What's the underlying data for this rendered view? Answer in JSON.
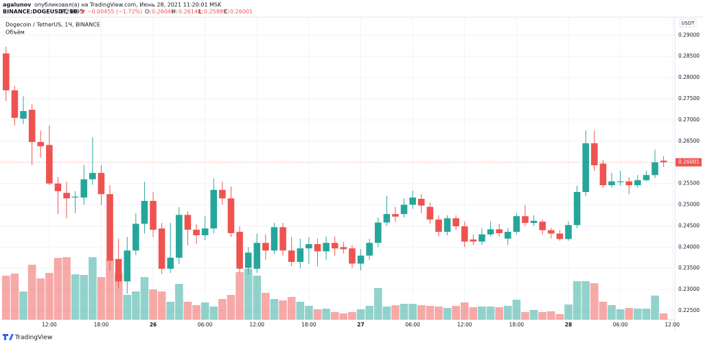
{
  "header": {
    "author": "agalunov",
    "published": "опубликовал(а) на TradingView.com, Июнь 28, 2021 11:20:01 MSK",
    "symbol": "BINANCE:DOGEUSDT, 60",
    "price": "0.25995",
    "change": "▼ −0.00455 (−1.72%)",
    "o_label": "O:",
    "o": "0.26040",
    "h_label": "H:",
    "h": "0.26148",
    "l_label": "L:",
    "l": "0.25889",
    "c_label": "C:",
    "c": "0.26001"
  },
  "chart_data": {
    "type": "candlestick",
    "title": "Dogecoin / TetherUS, 1Ч, BINANCE",
    "currency": "USDT",
    "up_color": "#26a69a",
    "down_color": "#ef5350",
    "series": [
      {
        "name": "DOGEUSDT",
        "open": [
          0.2857,
          0.277,
          0.2703,
          0.2724,
          0.2648,
          0.2641,
          0.255,
          0.2528,
          0.2517,
          0.2517,
          0.256,
          0.2575,
          0.2525,
          0.2372,
          0.2319,
          0.2392,
          0.2455,
          0.2509,
          0.2444,
          0.2349,
          0.2375,
          0.2476,
          0.2441,
          0.2428,
          0.2444,
          0.2535,
          0.2515,
          0.2436,
          0.2351,
          0.2349,
          0.241,
          0.2392,
          0.2447,
          0.2392,
          0.2365,
          0.2397,
          0.2407,
          0.239,
          0.241,
          0.24,
          0.2397,
          0.2361,
          0.238,
          0.241,
          0.2458,
          0.2478,
          0.2478,
          0.25,
          0.2514,
          0.2495,
          0.2465,
          0.2436,
          0.2468,
          0.2449,
          0.2418,
          0.2413,
          0.243,
          0.2442,
          0.242,
          0.2436,
          0.2473,
          0.2457,
          0.246,
          0.244,
          0.2432,
          0.2419,
          0.2452,
          0.253,
          0.2645,
          0.2597,
          0.2546,
          0.2553,
          0.2555,
          0.2546,
          0.2558,
          0.257,
          0.2604
        ],
        "high": [
          0.2873,
          0.278,
          0.2756,
          0.2737,
          0.2675,
          0.2687,
          0.2565,
          0.2554,
          0.2532,
          0.2594,
          0.2659,
          0.2594,
          0.2546,
          0.242,
          0.2424,
          0.248,
          0.2554,
          0.253,
          0.2457,
          0.2457,
          0.2494,
          0.2484,
          0.2454,
          0.2473,
          0.2562,
          0.2554,
          0.2543,
          0.2449,
          0.24,
          0.2432,
          0.243,
          0.2457,
          0.2457,
          0.2424,
          0.242,
          0.2424,
          0.242,
          0.2425,
          0.2425,
          0.2412,
          0.2405,
          0.2395,
          0.242,
          0.247,
          0.2521,
          0.2495,
          0.2515,
          0.2533,
          0.2525,
          0.2505,
          0.2475,
          0.2475,
          0.2475,
          0.246,
          0.243,
          0.2445,
          0.246,
          0.2455,
          0.2445,
          0.248,
          0.25,
          0.2475,
          0.2465,
          0.2445,
          0.244,
          0.246,
          0.2545,
          0.2675,
          0.2675,
          0.2605,
          0.2575,
          0.258,
          0.2565,
          0.257,
          0.258,
          0.263,
          0.26148
        ],
        "low": [
          0.2745,
          0.2687,
          0.269,
          0.2594,
          0.2611,
          0.2546,
          0.2478,
          0.2468,
          0.248,
          0.25,
          0.2547,
          0.25,
          0.2344,
          0.2303,
          0.229,
          0.2381,
          0.2432,
          0.2424,
          0.2336,
          0.2339,
          0.236,
          0.2404,
          0.2408,
          0.2416,
          0.2432,
          0.25,
          0.2424,
          0.2339,
          0.2336,
          0.2339,
          0.237,
          0.2384,
          0.238,
          0.2355,
          0.235,
          0.236,
          0.2355,
          0.237,
          0.238,
          0.2385,
          0.235,
          0.2345,
          0.237,
          0.24,
          0.245,
          0.246,
          0.247,
          0.249,
          0.248,
          0.2455,
          0.2425,
          0.2428,
          0.244,
          0.24,
          0.2405,
          0.2405,
          0.2425,
          0.2425,
          0.2405,
          0.243,
          0.245,
          0.245,
          0.243,
          0.242,
          0.2415,
          0.2415,
          0.2445,
          0.252,
          0.258,
          0.254,
          0.254,
          0.2545,
          0.2525,
          0.254,
          0.2555,
          0.2563,
          0.25889
        ],
        "close": [
          0.277,
          0.2705,
          0.2721,
          0.2648,
          0.2638,
          0.255,
          0.2532,
          0.2515,
          0.2519,
          0.256,
          0.2575,
          0.2525,
          0.2368,
          0.2319,
          0.2392,
          0.2455,
          0.2509,
          0.2441,
          0.2349,
          0.2375,
          0.2476,
          0.2441,
          0.2428,
          0.2444,
          0.2535,
          0.2515,
          0.2433,
          0.2349,
          0.2387,
          0.241,
          0.2392,
          0.2447,
          0.2392,
          0.2365,
          0.2397,
          0.2407,
          0.239,
          0.241,
          0.2397,
          0.2395,
          0.2361,
          0.238,
          0.241,
          0.2458,
          0.2478,
          0.2472,
          0.25,
          0.2517,
          0.2498,
          0.2465,
          0.2436,
          0.2468,
          0.2449,
          0.2413,
          0.2413,
          0.243,
          0.2442,
          0.2433,
          0.2436,
          0.2473,
          0.2457,
          0.2462,
          0.244,
          0.2432,
          0.2419,
          0.2452,
          0.253,
          0.2645,
          0.2593,
          0.2546,
          0.2555,
          0.2555,
          0.2546,
          0.2558,
          0.257,
          0.26,
          0.26001
        ]
      }
    ],
    "volume": {
      "name": "Объём",
      "values": [
        64,
        67,
        41,
        80,
        60,
        68,
        90,
        91,
        66,
        65,
        91,
        62,
        88,
        68,
        36,
        41,
        62,
        44,
        41,
        26,
        52,
        26,
        21,
        25,
        19,
        30,
        36,
        69,
        74,
        64,
        39,
        30,
        28,
        33,
        26,
        20,
        15,
        16,
        11,
        9,
        11,
        15,
        20,
        46,
        19,
        21,
        23,
        23,
        21,
        20,
        19,
        17,
        20,
        25,
        18,
        19,
        19,
        18,
        20,
        29,
        11,
        14,
        11,
        12,
        8,
        22,
        56,
        56,
        53,
        26,
        21,
        15,
        17,
        16,
        16,
        35,
        9
      ]
    },
    "ylim": [
      0.2229,
      0.2941
    ],
    "yticks": [
      {
        "value": 0.225,
        "label": "0.22500"
      },
      {
        "value": 0.23,
        "label": "0.23000"
      },
      {
        "value": 0.235,
        "label": "0.23500"
      },
      {
        "value": 0.24,
        "label": "0.24000"
      },
      {
        "value": 0.245,
        "label": "0.24500"
      },
      {
        "value": 0.25,
        "label": "0.25000"
      },
      {
        "value": 0.255,
        "label": "0.25500"
      },
      {
        "value": 0.265,
        "label": "0.26500"
      },
      {
        "value": 0.27,
        "label": "0.27000"
      },
      {
        "value": 0.275,
        "label": "0.27500"
      },
      {
        "value": 0.28,
        "label": "0.28000"
      },
      {
        "value": 0.285,
        "label": "0.28500"
      },
      {
        "value": 0.29,
        "label": "0.29000"
      }
    ],
    "last_price": {
      "value": 0.26001,
      "label": "0.26001"
    },
    "xlim": [
      -0.7,
      77.3
    ],
    "xticks": [
      {
        "value": 5,
        "label": "12:00"
      },
      {
        "value": 11,
        "label": "18:00"
      },
      {
        "value": 17,
        "label": "26"
      },
      {
        "value": 23,
        "label": "06:00"
      },
      {
        "value": 29,
        "label": "12:00"
      },
      {
        "value": 35,
        "label": "18:00"
      },
      {
        "value": 41,
        "label": "27"
      },
      {
        "value": 47,
        "label": "06:00"
      },
      {
        "value": 53,
        "label": "12:00"
      },
      {
        "value": 59,
        "label": "18:00"
      },
      {
        "value": 65,
        "label": "28"
      },
      {
        "value": 71,
        "label": "06:00"
      },
      {
        "value": 77,
        "label": "12:00"
      }
    ],
    "grid": true,
    "brand": "TradingView"
  }
}
